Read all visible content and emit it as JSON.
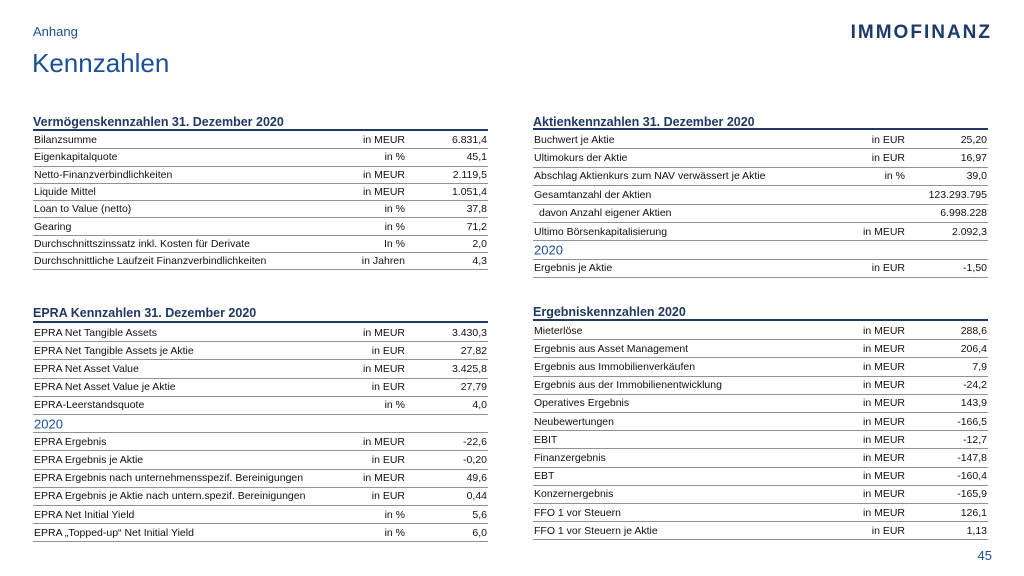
{
  "header": {
    "section": "Anhang",
    "title": "Kennzahlen",
    "logo": "IMMOFINANZ"
  },
  "footer": {
    "page": "45"
  },
  "tables": [
    {
      "title": "Vermögenskennzahlen 31. Dezember 2020",
      "rows": [
        {
          "label": "Bilanzsumme",
          "unit": "in MEUR",
          "value": "6.831,4"
        },
        {
          "label": "Eigenkapitalquote",
          "unit": "in %",
          "value": "45,1"
        },
        {
          "label": "Netto-Finanzverbindlichkeiten",
          "unit": "in MEUR",
          "value": "2.119,5"
        },
        {
          "label": "Liquide Mittel",
          "unit": "in MEUR",
          "value": "1.051,4"
        },
        {
          "label": "Loan to Value (netto)",
          "unit": "in %",
          "value": "37,8"
        },
        {
          "label": "Gearing",
          "unit": "in %",
          "value": "71,2"
        },
        {
          "label": "Durchschnittszinssatz inkl. Kosten für Derivate",
          "unit": "In %",
          "value": "2,0"
        },
        {
          "label": "Durchschnittliche Laufzeit Finanzverbindlichkeiten",
          "unit": "in Jahren",
          "value": "4,3"
        }
      ]
    },
    {
      "title": "Aktienkennzahlen 31. Dezember 2020",
      "rows": [
        {
          "label": "Buchwert je Aktie",
          "unit": "in EUR",
          "value": "25,20"
        },
        {
          "label": "Ultimokurs der Aktie",
          "unit": "in EUR",
          "value": "16,97"
        },
        {
          "label": "Abschlag Aktienkurs zum NAV verwässert je Aktie",
          "unit": "in %",
          "value": "39,0"
        },
        {
          "label": "Gesamtanzahl der Aktien",
          "value": "123.293.795"
        },
        {
          "label": "davon Anzahl eigener Aktien",
          "value": "6.998.228"
        },
        {
          "label": "Ultimo Börsenkapitalisierung",
          "unit": "in MEUR",
          "value": "2.092,3"
        },
        {
          "heading": "2020"
        },
        {
          "label": "Ergebnis je Aktie",
          "unit": "in EUR",
          "value": "-1,50"
        }
      ]
    },
    {
      "title": "EPRA Kennzahlen 31. Dezember 2020",
      "rows": [
        {
          "label": "EPRA Net Tangible Assets",
          "unit": "in MEUR",
          "value": "3.430,3"
        },
        {
          "label": "EPRA Net Tangible Assets je Aktie",
          "unit": "in EUR",
          "value": "27,82"
        },
        {
          "label": "EPRA Net Asset Value",
          "unit": "in MEUR",
          "value": "3.425,8"
        },
        {
          "label": "EPRA Net Asset Value je Aktie",
          "unit": "in EUR",
          "value": "27,79"
        },
        {
          "label": "EPRA-Leerstandsquote",
          "unit": "in %",
          "value": "4,0"
        },
        {
          "heading": "2020"
        },
        {
          "label": "EPRA Ergebnis",
          "unit": "in MEUR",
          "value": "-22,6"
        },
        {
          "label": "EPRA Ergebnis je Aktie",
          "unit": "in EUR",
          "value": "-0,20"
        },
        {
          "label": "EPRA Ergebnis nach unternehmensspezif. Bereinigungen",
          "unit": "in MEUR",
          "value": "49,6"
        },
        {
          "label": "EPRA Ergebnis je Aktie nach untern.spezif. Bereinigungen",
          "unit": "in EUR",
          "value": "0,44"
        },
        {
          "label": "EPRA Net Initial Yield",
          "unit": "in %",
          "value": "5,6"
        },
        {
          "label": "EPRA „Topped-up“ Net Initial Yield",
          "unit": "in %",
          "value": "6,0"
        }
      ]
    },
    {
      "title": "Ergebniskennzahlen 2020",
      "rows": [
        {
          "label": "Mieterlöse",
          "unit": "in MEUR",
          "value": "288,6"
        },
        {
          "label": "Ergebnis aus Asset Management",
          "unit": "in MEUR",
          "value": "206,4"
        },
        {
          "label": "Ergebnis aus Immobilienverkäufen",
          "unit": "in MEUR",
          "value": "7,9"
        },
        {
          "label": "Ergebnis aus der Immobilienentwicklung",
          "unit": "in MEUR",
          "value": "-24,2"
        },
        {
          "label": "Operatives Ergebnis",
          "unit": "in MEUR",
          "value": "143,9"
        },
        {
          "label": "Neubewertungen",
          "unit": "in MEUR",
          "value": "-166,5"
        },
        {
          "label": "EBIT",
          "unit": "in MEUR",
          "value": "-12,7"
        },
        {
          "label": "Finanzergebnis",
          "unit": "in MEUR",
          "value": "-147,8"
        },
        {
          "label": "EBT",
          "unit": "in MEUR",
          "value": "-160,4"
        },
        {
          "label": "Konzernergebnis",
          "unit": "in MEUR",
          "value": "-165,9"
        },
        {
          "label": "FFO 1 vor Steuern",
          "unit": "in MEUR",
          "value": "126,1"
        },
        {
          "label": "FFO 1 vor Steuern je Aktie",
          "unit": "in EUR",
          "value": "1,13"
        }
      ]
    }
  ]
}
